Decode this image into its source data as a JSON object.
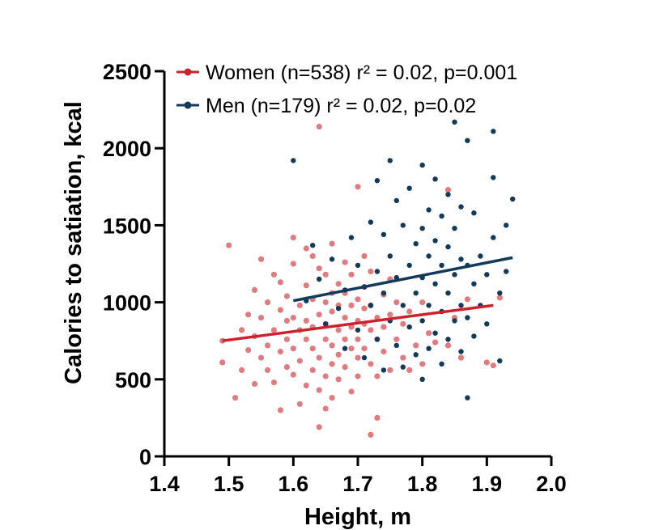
{
  "chart_data": {
    "type": "scatter",
    "title": "",
    "xlabel": "Height, m",
    "ylabel": "Calories to satiation, kcal",
    "xlim": [
      1.4,
      2.0
    ],
    "ylim": [
      0,
      2500
    ],
    "x_ticks": [
      1.4,
      1.5,
      1.6,
      1.7,
      1.8,
      1.9,
      2.0
    ],
    "x_tick_labels": [
      "1.4",
      "1.5",
      "1.6",
      "1.7",
      "1.8",
      "1.9",
      "2.0"
    ],
    "y_ticks": [
      0,
      500,
      1000,
      1500,
      2000,
      2500
    ],
    "y_tick_labels": [
      "0",
      "500",
      "1000",
      "1500",
      "2000",
      "2500"
    ],
    "grid": false,
    "legend_position": "top-left",
    "series": [
      {
        "name": "Women (n=538) r² = 0.02, p=0.001",
        "color": "#c9232c",
        "point_color": "#e07c80",
        "trend_line": {
          "x": [
            1.49,
            1.91
          ],
          "y": [
            750,
            980
          ]
        },
        "points": [
          [
            1.49,
            750
          ],
          [
            1.49,
            610
          ],
          [
            1.5,
            1370
          ],
          [
            1.51,
            380
          ],
          [
            1.52,
            560
          ],
          [
            1.52,
            820
          ],
          [
            1.53,
            690
          ],
          [
            1.53,
            920
          ],
          [
            1.54,
            1080
          ],
          [
            1.54,
            470
          ],
          [
            1.54,
            780
          ],
          [
            1.55,
            640
          ],
          [
            1.55,
            1280
          ],
          [
            1.55,
            900
          ],
          [
            1.56,
            560
          ],
          [
            1.56,
            1000
          ],
          [
            1.56,
            720
          ],
          [
            1.57,
            820
          ],
          [
            1.57,
            1180
          ],
          [
            1.57,
            480
          ],
          [
            1.58,
            950
          ],
          [
            1.58,
            680
          ],
          [
            1.58,
            300
          ],
          [
            1.58,
            1130
          ],
          [
            1.59,
            760
          ],
          [
            1.59,
            580
          ],
          [
            1.59,
            880
          ],
          [
            1.59,
            1040
          ],
          [
            1.6,
            1420
          ],
          [
            1.6,
            1250
          ],
          [
            1.6,
            700
          ],
          [
            1.6,
            900
          ],
          [
            1.6,
            530
          ],
          [
            1.61,
            340
          ],
          [
            1.61,
            620
          ],
          [
            1.61,
            980
          ],
          [
            1.61,
            820
          ],
          [
            1.62,
            1350
          ],
          [
            1.62,
            1110
          ],
          [
            1.62,
            760
          ],
          [
            1.62,
            460
          ],
          [
            1.62,
            880
          ],
          [
            1.63,
            1300
          ],
          [
            1.63,
            1020
          ],
          [
            1.63,
            700
          ],
          [
            1.63,
            560
          ],
          [
            1.63,
            840
          ],
          [
            1.64,
            1220
          ],
          [
            1.64,
            640
          ],
          [
            1.64,
            920
          ],
          [
            1.64,
            430
          ],
          [
            1.64,
            190
          ],
          [
            1.64,
            2140
          ],
          [
            1.65,
            1180
          ],
          [
            1.65,
            1000
          ],
          [
            1.65,
            760
          ],
          [
            1.65,
            520
          ],
          [
            1.65,
            310
          ],
          [
            1.65,
            860
          ],
          [
            1.66,
            1060
          ],
          [
            1.66,
            720
          ],
          [
            1.66,
            600
          ],
          [
            1.66,
            940
          ],
          [
            1.66,
            1380
          ],
          [
            1.66,
            380
          ],
          [
            1.67,
            820
          ],
          [
            1.67,
            1120
          ],
          [
            1.67,
            660
          ],
          [
            1.67,
            500
          ],
          [
            1.67,
            980
          ],
          [
            1.68,
            1260
          ],
          [
            1.68,
            760
          ],
          [
            1.68,
            900
          ],
          [
            1.68,
            580
          ],
          [
            1.68,
            1060
          ],
          [
            1.69,
            840
          ],
          [
            1.69,
            700
          ],
          [
            1.69,
            1180
          ],
          [
            1.69,
            420
          ],
          [
            1.69,
            980
          ],
          [
            1.7,
            1750
          ],
          [
            1.7,
            880
          ],
          [
            1.7,
            640
          ],
          [
            1.7,
            1020
          ],
          [
            1.7,
            760
          ],
          [
            1.7,
            520
          ],
          [
            1.71,
            1300
          ],
          [
            1.71,
            960
          ],
          [
            1.71,
            700
          ],
          [
            1.71,
            860
          ],
          [
            1.71,
            1100
          ],
          [
            1.72,
            140
          ],
          [
            1.72,
            820
          ],
          [
            1.72,
            600
          ],
          [
            1.72,
            980
          ],
          [
            1.72,
            1200
          ],
          [
            1.73,
            250
          ],
          [
            1.73,
            760
          ],
          [
            1.73,
            900
          ],
          [
            1.73,
            520
          ],
          [
            1.74,
            1050
          ],
          [
            1.74,
            680
          ],
          [
            1.74,
            840
          ],
          [
            1.75,
            1150
          ],
          [
            1.75,
            560
          ],
          [
            1.75,
            920
          ],
          [
            1.76,
            760
          ],
          [
            1.76,
            1000
          ],
          [
            1.77,
            640
          ],
          [
            1.77,
            860
          ],
          [
            1.78,
            940
          ],
          [
            1.78,
            560
          ],
          [
            1.79,
            720
          ],
          [
            1.8,
            1000
          ],
          [
            1.8,
            600
          ],
          [
            1.81,
            800
          ],
          [
            1.82,
            740
          ],
          [
            1.84,
            720
          ],
          [
            1.84,
            1730
          ],
          [
            1.85,
            900
          ],
          [
            1.86,
            640
          ],
          [
            1.87,
            1020
          ],
          [
            1.9,
            610
          ],
          [
            1.91,
            590
          ],
          [
            1.92,
            1030
          ]
        ]
      },
      {
        "name": "Men (n=179) r² = 0.02, p=0.02",
        "color": "#143a5a",
        "point_color": "#143a5a",
        "trend_line": {
          "x": [
            1.6,
            1.94
          ],
          "y": [
            1010,
            1290
          ]
        },
        "points": [
          [
            1.6,
            1920
          ],
          [
            1.62,
            1010
          ],
          [
            1.63,
            1370
          ],
          [
            1.64,
            1150
          ],
          [
            1.65,
            860
          ],
          [
            1.66,
            1280
          ],
          [
            1.67,
            960
          ],
          [
            1.68,
            700
          ],
          [
            1.68,
            1080
          ],
          [
            1.69,
            1420
          ],
          [
            1.7,
            1240
          ],
          [
            1.7,
            820
          ],
          [
            1.71,
            1100
          ],
          [
            1.71,
            640
          ],
          [
            1.72,
            1520
          ],
          [
            1.72,
            980
          ],
          [
            1.73,
            1790
          ],
          [
            1.73,
            1200
          ],
          [
            1.73,
            760
          ],
          [
            1.74,
            1440
          ],
          [
            1.74,
            1060
          ],
          [
            1.74,
            560
          ],
          [
            1.75,
            1920
          ],
          [
            1.75,
            1300
          ],
          [
            1.75,
            880
          ],
          [
            1.76,
            1660
          ],
          [
            1.76,
            1160
          ],
          [
            1.76,
            720
          ],
          [
            1.77,
            1500
          ],
          [
            1.77,
            980
          ],
          [
            1.77,
            580
          ],
          [
            1.78,
            1740
          ],
          [
            1.78,
            1240
          ],
          [
            1.78,
            840
          ],
          [
            1.79,
            1380
          ],
          [
            1.79,
            1060
          ],
          [
            1.79,
            660
          ],
          [
            1.8,
            1890
          ],
          [
            1.8,
            1480
          ],
          [
            1.8,
            1160
          ],
          [
            1.8,
            880
          ],
          [
            1.8,
            500
          ],
          [
            1.81,
            1600
          ],
          [
            1.81,
            1300
          ],
          [
            1.81,
            980
          ],
          [
            1.81,
            700
          ],
          [
            1.82,
            1800
          ],
          [
            1.82,
            1400
          ],
          [
            1.82,
            1120
          ],
          [
            1.82,
            800
          ],
          [
            1.83,
            1560
          ],
          [
            1.83,
            1240
          ],
          [
            1.83,
            940
          ],
          [
            1.83,
            600
          ],
          [
            1.84,
            1700
          ],
          [
            1.84,
            1360
          ],
          [
            1.84,
            1060
          ],
          [
            1.84,
            760
          ],
          [
            1.85,
            2170
          ],
          [
            1.85,
            1480
          ],
          [
            1.85,
            1180
          ],
          [
            1.85,
            880
          ],
          [
            1.86,
            1620
          ],
          [
            1.86,
            1280
          ],
          [
            1.86,
            980
          ],
          [
            1.86,
            680
          ],
          [
            1.87,
            2050
          ],
          [
            1.87,
            1240
          ],
          [
            1.87,
            900
          ],
          [
            1.87,
            380
          ],
          [
            1.88,
            1580
          ],
          [
            1.88,
            1120
          ],
          [
            1.88,
            780
          ],
          [
            1.89,
            1300
          ],
          [
            1.89,
            980
          ],
          [
            1.9,
            1180
          ],
          [
            1.9,
            860
          ],
          [
            1.91,
            2110
          ],
          [
            1.91,
            1810
          ],
          [
            1.91,
            1420
          ],
          [
            1.92,
            1060
          ],
          [
            1.92,
            620
          ],
          [
            1.93,
            1500
          ],
          [
            1.93,
            1200
          ],
          [
            1.94,
            1670
          ]
        ]
      }
    ]
  }
}
